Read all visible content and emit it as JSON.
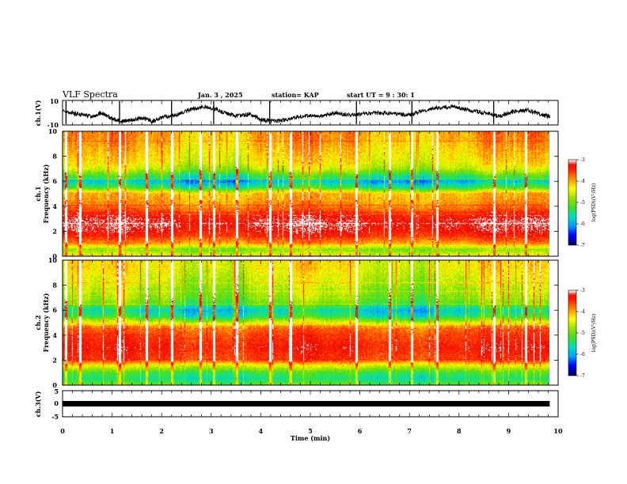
{
  "header": {
    "title": "VLF Spectra",
    "date": "Jan. 3 , 2025",
    "station": "station= KAP",
    "start": "start UT = 9 : 30: 1"
  },
  "chart_data": [
    {
      "type": "line",
      "name": "waveform-ch1",
      "ylabel": "ch.1(V)",
      "ylim": [
        -10,
        10
      ],
      "y_tick_labels": [
        "10",
        "-10"
      ],
      "x_range_min": [
        0,
        9.83
      ],
      "description_series": [
        {
          "name": "ch1",
          "x": [
            0,
            0.3,
            0.6,
            0.8,
            1.0,
            1.2,
            1.4,
            1.6,
            1.8,
            2.0,
            2.3,
            2.6,
            2.9,
            3.2,
            3.5,
            3.8,
            4.0,
            4.3,
            4.6,
            4.9,
            5.2,
            5.5,
            5.8,
            6.1,
            6.4,
            6.7,
            7.0,
            7.3,
            7.6,
            7.9,
            8.2,
            8.5,
            8.8,
            9.1,
            9.4,
            9.7,
            9.83
          ],
          "y": [
            1,
            -1,
            -3,
            0,
            -5,
            -7,
            -6,
            -4,
            -7,
            -4,
            -2,
            3,
            5,
            1,
            -3,
            -1,
            -6,
            -7,
            -5,
            -2,
            -3,
            0,
            -2,
            -1,
            0,
            -1,
            -2,
            2,
            4,
            5,
            2,
            0,
            -3,
            1,
            2,
            -2,
            -3
          ]
        }
      ]
    },
    {
      "type": "heatmap",
      "name": "spectrogram-ch1",
      "ylabel": "ch.1\nFrequency (kHz)",
      "ylim": [
        0,
        10
      ],
      "y_ticks": [
        0,
        2,
        4,
        6,
        8,
        10
      ],
      "x_range_min": [
        0,
        9.83
      ],
      "colorbar": {
        "label": "log(PSD)(V²/Hz)",
        "range": [
          -7,
          -3
        ],
        "ticks": [
          -3,
          -4,
          -5,
          -6,
          -7
        ]
      },
      "frequency_profile_khz": [
        {
          "f": 0.0,
          "psd": -4.5
        },
        {
          "f": 0.5,
          "psd": -5.0
        },
        {
          "f": 1.0,
          "psd": -4.0
        },
        {
          "f": 1.5,
          "psd": -3.6
        },
        {
          "f": 2.0,
          "psd": -3.3
        },
        {
          "f": 2.5,
          "psd": -3.2
        },
        {
          "f": 3.0,
          "psd": -3.3
        },
        {
          "f": 3.5,
          "psd": -3.6
        },
        {
          "f": 4.0,
          "psd": -3.9
        },
        {
          "f": 4.5,
          "psd": -4.1
        },
        {
          "f": 5.0,
          "psd": -4.2
        },
        {
          "f": 5.5,
          "psd": -5.5
        },
        {
          "f": 6.0,
          "psd": -6.1
        },
        {
          "f": 6.5,
          "psd": -5.4
        },
        {
          "f": 7.0,
          "psd": -4.8
        },
        {
          "f": 7.5,
          "psd": -4.5
        },
        {
          "f": 8.0,
          "psd": -4.4
        },
        {
          "f": 8.5,
          "psd": -4.3
        },
        {
          "f": 9.0,
          "psd": -4.2
        },
        {
          "f": 9.5,
          "psd": -4.1
        },
        {
          "f": 10.0,
          "psd": -4.1
        }
      ],
      "bursts_min": [
        0.07,
        0.35,
        1.15,
        1.7,
        2.2,
        2.78,
        3.05,
        3.52,
        4.18,
        4.6,
        5.93,
        6.6,
        7.05,
        7.55,
        8.7,
        9.35
      ]
    },
    {
      "type": "heatmap",
      "name": "spectrogram-ch2",
      "ylabel": "ch.2\nFrequency (kHz)",
      "ylim": [
        0,
        10
      ],
      "y_ticks": [
        0,
        2,
        4,
        6,
        8,
        10
      ],
      "x_range_min": [
        0,
        9.83
      ],
      "colorbar": {
        "label": "log(PSD)(V²/Hz)",
        "range": [
          -7,
          -3
        ],
        "ticks": [
          -3,
          -4,
          -5,
          -6,
          -7
        ]
      },
      "frequency_profile_khz": [
        {
          "f": 0.0,
          "psd": -5.2
        },
        {
          "f": 0.5,
          "psd": -5.6
        },
        {
          "f": 1.0,
          "psd": -5.3
        },
        {
          "f": 1.5,
          "psd": -4.6
        },
        {
          "f": 2.0,
          "psd": -3.6
        },
        {
          "f": 2.5,
          "psd": -3.5
        },
        {
          "f": 3.0,
          "psd": -3.4
        },
        {
          "f": 3.5,
          "psd": -3.5
        },
        {
          "f": 4.0,
          "psd": -3.6
        },
        {
          "f": 4.5,
          "psd": -3.8
        },
        {
          "f": 5.0,
          "psd": -4.6
        },
        {
          "f": 5.5,
          "psd": -5.6
        },
        {
          "f": 6.0,
          "psd": -5.9
        },
        {
          "f": 6.5,
          "psd": -5.3
        },
        {
          "f": 7.0,
          "psd": -5.0
        },
        {
          "f": 7.5,
          "psd": -4.9
        },
        {
          "f": 8.0,
          "psd": -4.8
        },
        {
          "f": 8.5,
          "psd": -4.7
        },
        {
          "f": 9.0,
          "psd": -4.6
        },
        {
          "f": 9.5,
          "psd": -4.5
        },
        {
          "f": 10.0,
          "psd": -4.5
        }
      ],
      "bursts_min": [
        0.07,
        0.35,
        1.15,
        1.7,
        2.2,
        2.78,
        3.05,
        3.52,
        4.18,
        4.6,
        5.93,
        6.6,
        7.05,
        7.55,
        8.7,
        9.35
      ]
    },
    {
      "type": "line",
      "name": "waveform-ch3",
      "ylabel": "ch.3(V)",
      "ylim": [
        -5,
        5
      ],
      "y_tick_labels": [
        "5",
        "0",
        "-5"
      ],
      "x_range_min": [
        0,
        9.83
      ],
      "series": [
        {
          "name": "ch3",
          "x": [
            0,
            9.83
          ],
          "y": [
            0,
            0
          ]
        }
      ],
      "xlabel": "Time (min)",
      "x_ticks": [
        0,
        1,
        2,
        3,
        4,
        5,
        6,
        7,
        8,
        9,
        10
      ]
    }
  ],
  "axes": {
    "x_tick_labels": [
      "0",
      "1",
      "2",
      "3",
      "4",
      "5",
      "6",
      "7",
      "8",
      "9",
      "10"
    ],
    "xlabel": "Time (min)",
    "freq_tick_labels": [
      "0",
      "2",
      "4",
      "6",
      "8",
      "10"
    ],
    "ch1_ylabel": "ch.1(V)",
    "ch1_tick_top": "10",
    "ch1_tick_bottom": "-10",
    "spec1_ylabel_a": "ch.1",
    "spec1_ylabel_b": "Frequency (kHz)",
    "spec2_ylabel_a": "ch.2",
    "spec2_ylabel_b": "Frequency (kHz)",
    "ch3_ylabel": "ch.3(V)",
    "ch3_tick_top": "5",
    "ch3_tick_mid": "0",
    "ch3_tick_bottom": "-5"
  },
  "colorbar": {
    "ticks": [
      "-3",
      "-4",
      "-5",
      "-6",
      "-7"
    ],
    "label": "log(PSD)(V²/Hz)"
  },
  "colors": {
    "scale": [
      "#000060",
      "#0000ff",
      "#00a0ff",
      "#00e0c0",
      "#40e020",
      "#a0e000",
      "#ffff00",
      "#ff9000",
      "#ff2000",
      "#e00000",
      "#ffffff"
    ]
  }
}
